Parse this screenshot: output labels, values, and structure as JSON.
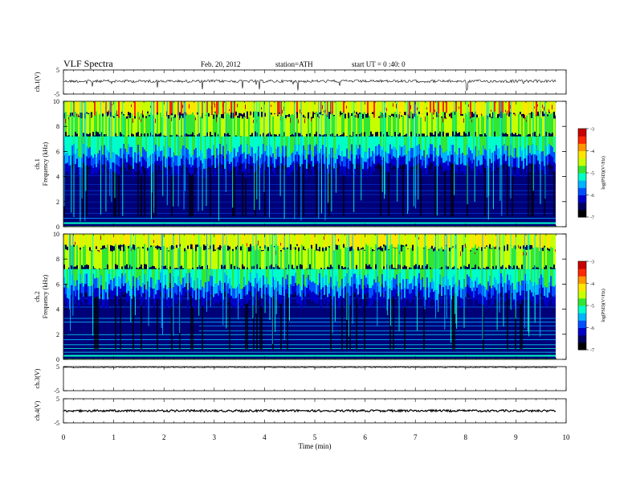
{
  "header": {
    "title": "VLF  Spectra",
    "date": "Feb. 20, 2012",
    "station": "station=ATH",
    "start_ut": "start  UT  =   0 :40: 0"
  },
  "colors": {
    "spectrogram_palette": [
      "#000000",
      "#000060",
      "#0000c8",
      "#0050ff",
      "#00b4ff",
      "#00ffc8",
      "#32e632",
      "#c8ff00",
      "#ffe600",
      "#ff9600",
      "#ff2800",
      "#c80000",
      "#ffffff"
    ],
    "trace": "#000000"
  },
  "chart_data": [
    {
      "type": "line",
      "ylabel": "ch.1(V)",
      "xlim": [
        0,
        10
      ],
      "ylim": [
        -5,
        5
      ],
      "y_ticks": [
        "5",
        "-5"
      ],
      "baseline": 0,
      "note": "noisy trace near 0 V with sparse negative spikes"
    },
    {
      "type": "heatmap",
      "ylabel": "ch.1\nFrequency  (kHz)",
      "xlim": [
        0,
        9.8
      ],
      "ylim": [
        0,
        10
      ],
      "y_ticks": [
        "0",
        "2",
        "4",
        "6",
        "8",
        "10"
      ],
      "colorbar": {
        "label": "log(PSD)(V²/Hz)",
        "range": [
          -7,
          -3
        ],
        "ticks": [
          "-3",
          "-4",
          "-5",
          "-6",
          "-7"
        ]
      }
    },
    {
      "type": "heatmap",
      "ylabel": "ch.2\nFrequency  (kHz)",
      "xlim": [
        0,
        9.8
      ],
      "ylim": [
        0,
        10
      ],
      "y_ticks": [
        "0",
        "2",
        "4",
        "6",
        "8",
        "10"
      ],
      "colorbar": {
        "label": "log(PSD)(V²/Hz)",
        "range": [
          -7,
          -3
        ],
        "ticks": [
          "-3",
          "-4",
          "-5",
          "-6",
          "-7"
        ]
      }
    },
    {
      "type": "line",
      "ylabel": "ch.3(V)",
      "xlim": [
        0,
        10
      ],
      "ylim": [
        -5,
        5
      ],
      "y_ticks": [
        "5",
        "-5"
      ],
      "baseline": 0
    },
    {
      "type": "line",
      "ylabel": "ch.4(V)",
      "xlim": [
        0,
        10
      ],
      "ylim": [
        -5,
        5
      ],
      "y_ticks": [
        "5",
        "-5"
      ],
      "baseline": 0
    }
  ],
  "x_axis": {
    "xlabel": "Time  (min)",
    "ticks": [
      "0",
      "1",
      "2",
      "3",
      "4",
      "5",
      "6",
      "7",
      "8",
      "9",
      "10"
    ]
  }
}
